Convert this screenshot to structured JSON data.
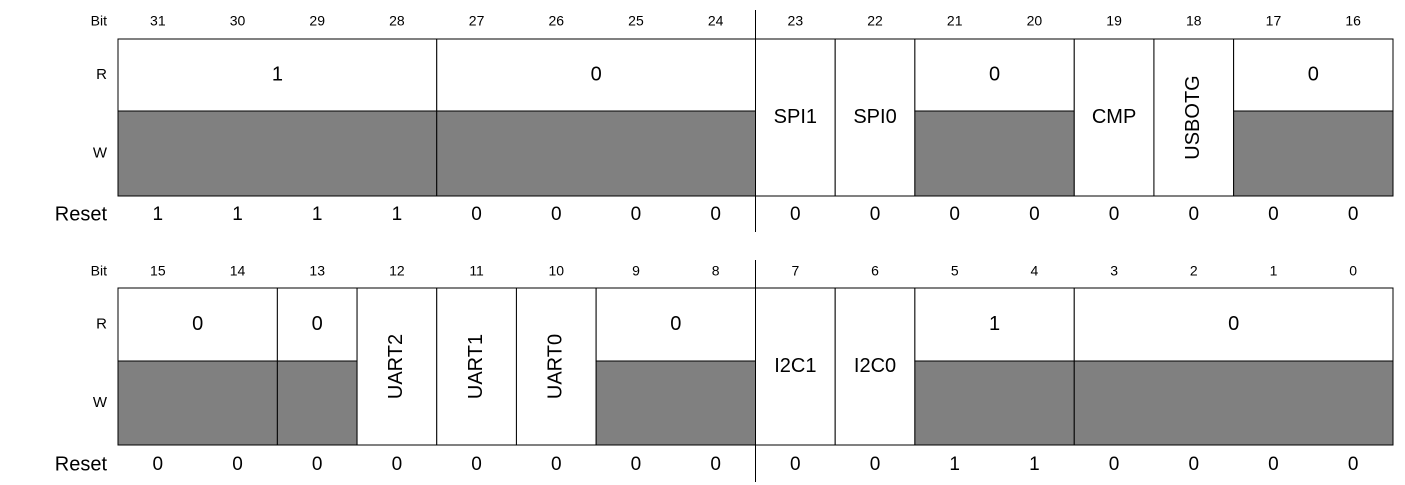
{
  "registers": [
    {
      "bit_label": "Bit",
      "r_label": "R",
      "w_label": "W",
      "reset_label": "Reset",
      "bits": [
        31,
        30,
        29,
        28,
        27,
        26,
        25,
        24,
        23,
        22,
        21,
        20,
        19,
        18,
        17,
        16
      ],
      "fields": [
        {
          "msb": 31,
          "lsb": 28,
          "label": "1",
          "reserved": true
        },
        {
          "msb": 27,
          "lsb": 24,
          "label": "0",
          "reserved": true
        },
        {
          "msb": 23,
          "lsb": 23,
          "label": "SPI1"
        },
        {
          "msb": 22,
          "lsb": 22,
          "label": "SPI0"
        },
        {
          "msb": 21,
          "lsb": 20,
          "label": "0",
          "reserved": true
        },
        {
          "msb": 19,
          "lsb": 19,
          "label": "CMP"
        },
        {
          "msb": 18,
          "lsb": 18,
          "label": "USBOTG",
          "vertical": true
        },
        {
          "msb": 17,
          "lsb": 16,
          "label": "0",
          "reserved": true
        }
      ],
      "reset": [
        1,
        1,
        1,
        1,
        0,
        0,
        0,
        0,
        0,
        0,
        0,
        0,
        0,
        0,
        0,
        0
      ]
    },
    {
      "bit_label": "Bit",
      "r_label": "R",
      "w_label": "W",
      "reset_label": "Reset",
      "bits": [
        15,
        14,
        13,
        12,
        11,
        10,
        9,
        8,
        7,
        6,
        5,
        4,
        3,
        2,
        1,
        0
      ],
      "fields": [
        {
          "msb": 15,
          "lsb": 14,
          "label": "0",
          "reserved": true
        },
        {
          "msb": 13,
          "lsb": 13,
          "label": "0",
          "reserved": true
        },
        {
          "msb": 12,
          "lsb": 12,
          "label": "UART2",
          "vertical": true
        },
        {
          "msb": 11,
          "lsb": 11,
          "label": "UART1",
          "vertical": true
        },
        {
          "msb": 10,
          "lsb": 10,
          "label": "UART0",
          "vertical": true
        },
        {
          "msb": 9,
          "lsb": 8,
          "label": "0",
          "reserved": true
        },
        {
          "msb": 7,
          "lsb": 7,
          "label": "I2C1"
        },
        {
          "msb": 6,
          "lsb": 6,
          "label": "I2C0"
        },
        {
          "msb": 5,
          "lsb": 4,
          "label": "1",
          "reserved": true
        },
        {
          "msb": 3,
          "lsb": 0,
          "label": "0",
          "reserved": true
        }
      ],
      "reset": [
        0,
        0,
        0,
        0,
        0,
        0,
        0,
        0,
        0,
        0,
        1,
        1,
        0,
        0,
        0,
        0
      ]
    }
  ]
}
